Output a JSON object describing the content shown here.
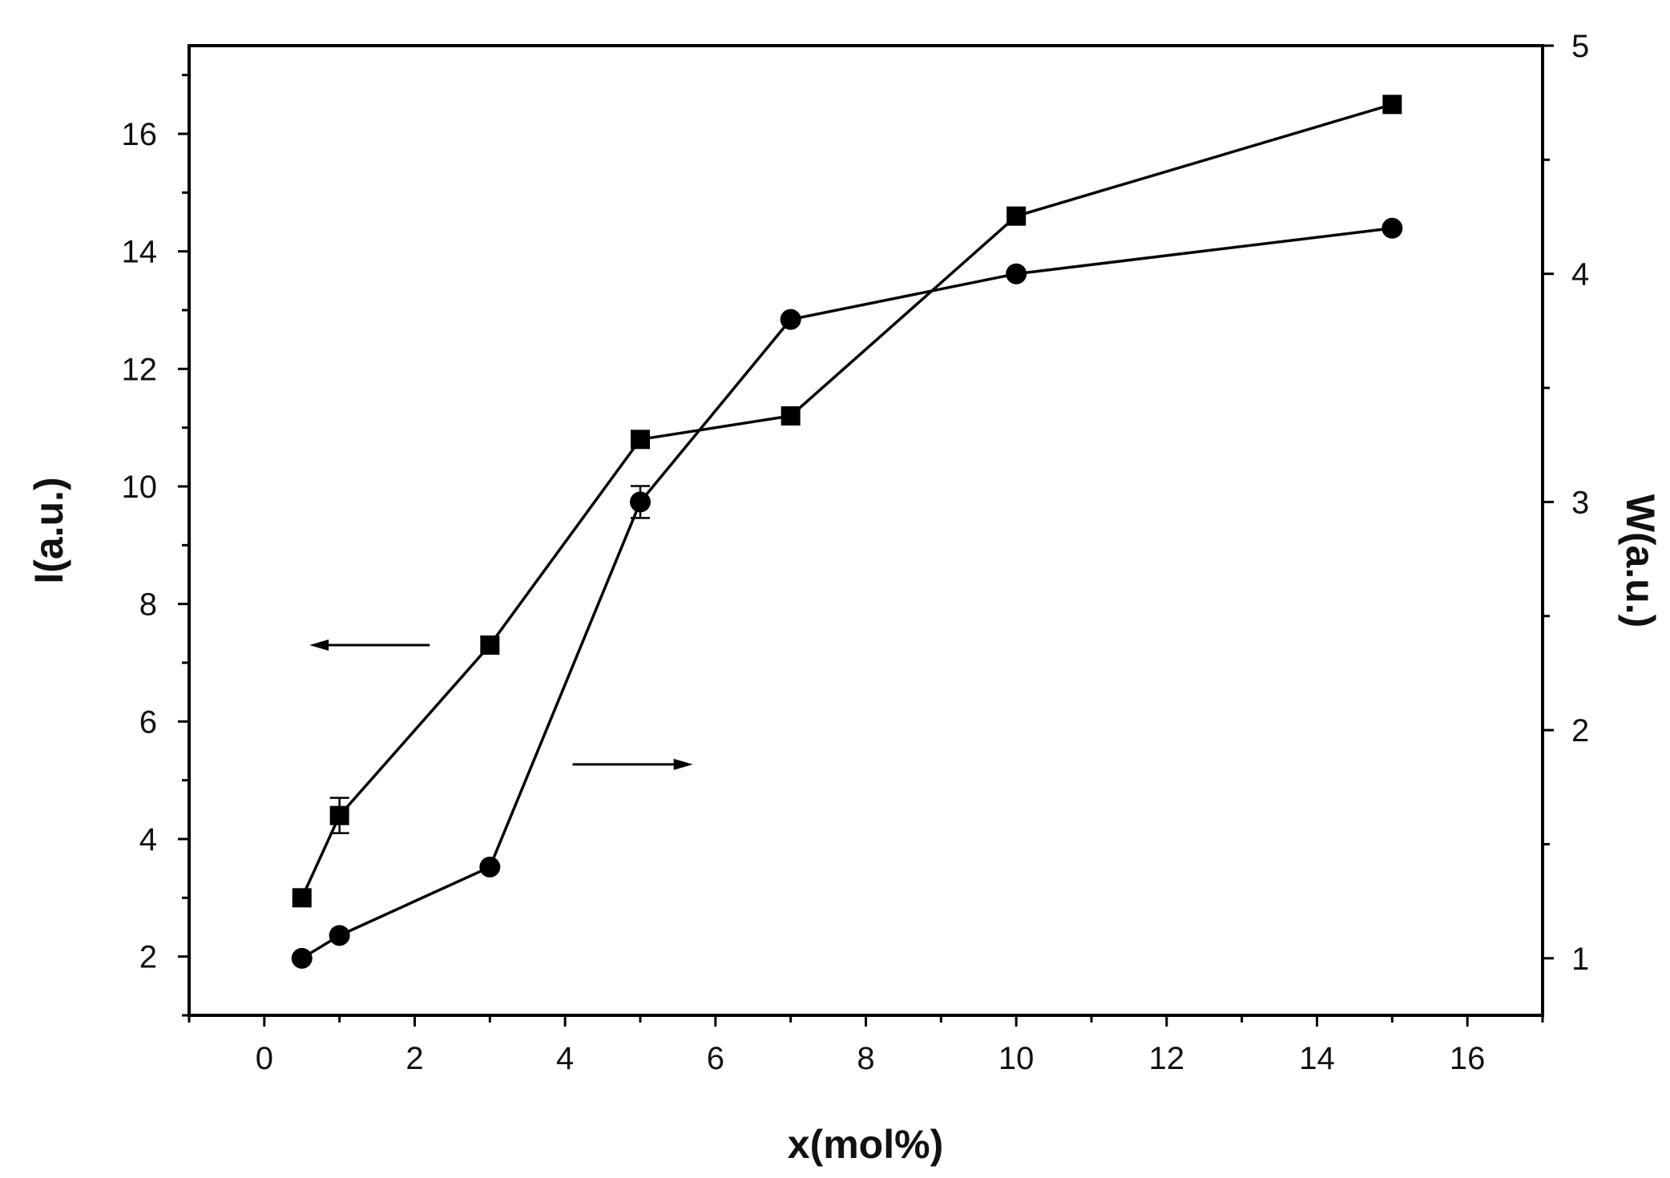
{
  "chart_data": {
    "type": "line",
    "xlabel": "x(mol%)",
    "ylabel_left": "I(a.u.)",
    "ylabel_right": "W(a.u.)",
    "xlim": [
      -1,
      17
    ],
    "ylim_left": [
      1,
      17.5
    ],
    "ylim_right": [
      0.75,
      5
    ],
    "x_ticks": [
      0,
      2,
      4,
      6,
      8,
      10,
      12,
      14,
      16
    ],
    "y_left_ticks": [
      2,
      4,
      6,
      8,
      10,
      12,
      14,
      16
    ],
    "y_right_ticks": [
      1,
      2,
      3,
      4,
      5
    ],
    "grid": false,
    "series": [
      {
        "axis": "left",
        "marker": "square",
        "points": [
          {
            "x": 0.5,
            "y": 3.0
          },
          {
            "x": 1,
            "y": 4.4,
            "err": 0.3
          },
          {
            "x": 3,
            "y": 7.3
          },
          {
            "x": 5,
            "y": 10.8
          },
          {
            "x": 7,
            "y": 11.2
          },
          {
            "x": 10,
            "y": 14.6
          },
          {
            "x": 15,
            "y": 16.5
          }
        ]
      },
      {
        "axis": "right",
        "marker": "circle",
        "points": [
          {
            "x": 0.5,
            "y": 1.0
          },
          {
            "x": 1,
            "y": 1.1
          },
          {
            "x": 3,
            "y": 1.4
          },
          {
            "x": 5,
            "y": 3.0,
            "err": 0.07
          },
          {
            "x": 7,
            "y": 3.8
          },
          {
            "x": 10,
            "y": 4.0
          },
          {
            "x": 15,
            "y": 4.2
          }
        ]
      }
    ],
    "annotations": [
      {
        "type": "arrow",
        "direction": "left",
        "axis": "left",
        "x_from": 2.2,
        "x_to": 0.6,
        "y": 7.3
      },
      {
        "type": "arrow",
        "direction": "right",
        "axis": "right",
        "x_from": 4.1,
        "x_to": 5.7,
        "y": 1.85
      }
    ]
  }
}
